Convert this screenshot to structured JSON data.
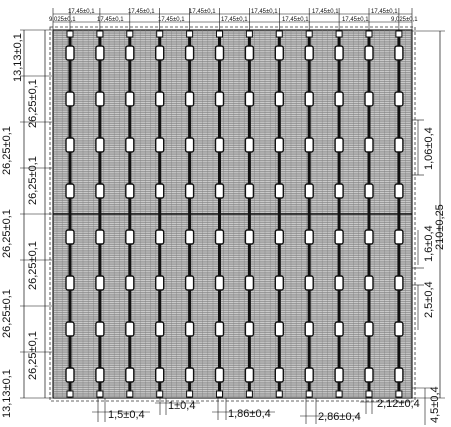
{
  "dimensions": {
    "top_labels": [
      "9,025±0,1",
      "17,45±0,1",
      "17,45±0,1",
      "17,45±0,1",
      "17,45±0,1",
      "17,45±0,1",
      "17,45±0,1",
      "17,45±0,1",
      "17,45±0,1",
      "17,45±0,1",
      "17,45±0,1",
      "17,45±0,1",
      "9,025±0,1"
    ],
    "left_labels": [
      "13,13±0,1",
      "26,25±0,1",
      "26,25±0,1",
      "26,25±0,1",
      "26,25±0,1",
      "26,25±0,1",
      "26,25±0,1",
      "26,25±0,1",
      "13,13±0,1"
    ],
    "right_labels": [
      "1,06±0,4",
      "210±0,25",
      "1,6±0,4",
      "2,5±0,4",
      "4,5±0,4"
    ],
    "bottom_labels": [
      "1,5±0,4",
      "1±0,4",
      "1,86±0,4",
      "2,86±0,4",
      "2,12±0,4"
    ]
  },
  "grid": {
    "busbar_columns": 12,
    "cell_rows": 8,
    "finger_count_per_row": 9
  }
}
